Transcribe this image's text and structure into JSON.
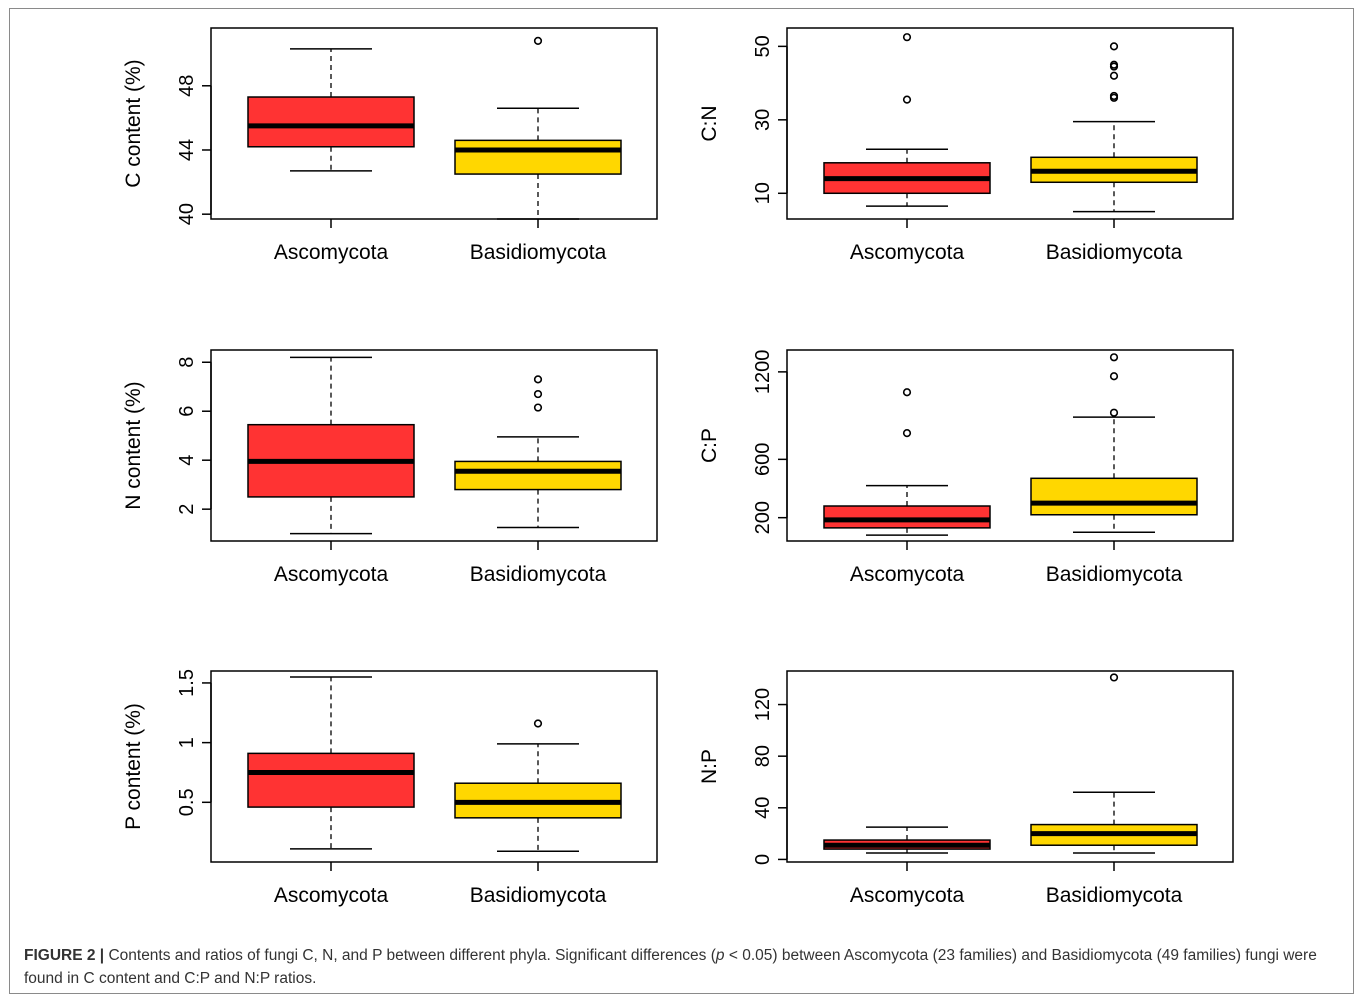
{
  "figure": {
    "caption_label": "FIGURE 2 |",
    "caption_part1": " Contents and ratios of fungi C, N, and P between different phyla. Significant differences (",
    "caption_p": "p",
    "caption_part2": " < 0.05) between Ascomycota (23 families) and Basidiomycota (49 families) fungi were found in C content and C:P and N:P ratios."
  },
  "colors": {
    "Ascomycota": "#ff3333",
    "Basidiomycota": "#ffd700"
  },
  "chart_data": [
    {
      "type": "boxplot",
      "ylabel": "C content (%)",
      "categories": [
        "Ascomycota",
        "Basidiomycota"
      ],
      "ylim": [
        39.7,
        51.6
      ],
      "yticks": [
        40,
        44,
        48
      ],
      "boxes": [
        {
          "name": "Ascomycota",
          "whisker_low": 42.7,
          "q1": 44.2,
          "median": 45.5,
          "q3": 47.3,
          "whisker_high": 50.3,
          "outliers": []
        },
        {
          "name": "Basidiomycota",
          "whisker_low": 39.7,
          "q1": 42.5,
          "median": 44.0,
          "q3": 44.6,
          "whisker_high": 46.6,
          "outliers": [
            50.8
          ]
        }
      ]
    },
    {
      "type": "boxplot",
      "ylabel": "C:N",
      "categories": [
        "Ascomycota",
        "Basidiomycota"
      ],
      "ylim": [
        3.0,
        55.0
      ],
      "yticks": [
        10,
        30,
        50
      ],
      "boxes": [
        {
          "name": "Ascomycota",
          "whisker_low": 6.5,
          "q1": 10.0,
          "median": 14.0,
          "q3": 18.3,
          "whisker_high": 22.0,
          "outliers": [
            35.5,
            52.5
          ]
        },
        {
          "name": "Basidiomycota",
          "whisker_low": 5.0,
          "q1": 13.0,
          "median": 16.0,
          "q3": 19.8,
          "whisker_high": 29.5,
          "outliers": [
            36.0,
            36.5,
            42.0,
            44.5,
            45.0,
            50.0
          ]
        }
      ]
    },
    {
      "type": "boxplot",
      "ylabel": "N content (%)",
      "categories": [
        "Ascomycota",
        "Basidiomycota"
      ],
      "ylim": [
        0.7,
        8.5
      ],
      "yticks": [
        2,
        4,
        6,
        8
      ],
      "boxes": [
        {
          "name": "Ascomycota",
          "whisker_low": 1.0,
          "q1": 2.5,
          "median": 3.95,
          "q3": 5.45,
          "whisker_high": 8.2,
          "outliers": []
        },
        {
          "name": "Basidiomycota",
          "whisker_low": 1.25,
          "q1": 2.8,
          "median": 3.55,
          "q3": 3.95,
          "whisker_high": 4.95,
          "outliers": [
            6.15,
            6.7,
            7.3
          ]
        }
      ]
    },
    {
      "type": "boxplot",
      "ylabel": "C:P",
      "categories": [
        "Ascomycota",
        "Basidiomycota"
      ],
      "ylim": [
        40,
        1350
      ],
      "yticks": [
        200,
        600,
        1200
      ],
      "boxes": [
        {
          "name": "Ascomycota",
          "whisker_low": 80,
          "q1": 130,
          "median": 185,
          "q3": 280,
          "whisker_high": 420,
          "outliers": [
            780,
            1060
          ]
        },
        {
          "name": "Basidiomycota",
          "whisker_low": 100,
          "q1": 220,
          "median": 300,
          "q3": 470,
          "whisker_high": 890,
          "outliers": [
            920,
            1170,
            1300
          ]
        }
      ]
    },
    {
      "type": "boxplot",
      "ylabel": "P content (%)",
      "categories": [
        "Ascomycota",
        "Basidiomycota"
      ],
      "ylim": [
        0.0,
        1.6
      ],
      "yticks": [
        0.5,
        1.0,
        1.5
      ],
      "boxes": [
        {
          "name": "Ascomycota",
          "whisker_low": 0.11,
          "q1": 0.46,
          "median": 0.75,
          "q3": 0.91,
          "whisker_high": 1.55,
          "outliers": []
        },
        {
          "name": "Basidiomycota",
          "whisker_low": 0.09,
          "q1": 0.37,
          "median": 0.5,
          "q3": 0.66,
          "whisker_high": 0.99,
          "outliers": [
            1.16
          ]
        }
      ]
    },
    {
      "type": "boxplot",
      "ylabel": "N:P",
      "categories": [
        "Ascomycota",
        "Basidiomycota"
      ],
      "ylim": [
        -2,
        146
      ],
      "yticks": [
        0,
        40,
        80,
        120
      ],
      "boxes": [
        {
          "name": "Ascomycota",
          "whisker_low": 5,
          "q1": 8,
          "median": 11,
          "q3": 15,
          "whisker_high": 25,
          "outliers": []
        },
        {
          "name": "Basidiomycota",
          "whisker_low": 5,
          "q1": 11,
          "median": 20,
          "q3": 27,
          "whisker_high": 52,
          "outliers": [
            141
          ]
        }
      ]
    }
  ]
}
